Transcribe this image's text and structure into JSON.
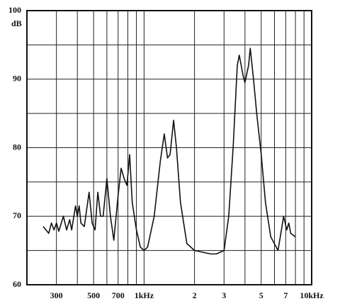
{
  "chart_data": {
    "type": "line",
    "x": [
      250,
      270,
      280,
      290,
      300,
      310,
      330,
      345,
      360,
      370,
      390,
      400,
      410,
      420,
      440,
      470,
      490,
      510,
      530,
      550,
      570,
      600,
      630,
      660,
      700,
      730,
      760,
      790,
      820,
      850,
      900,
      950,
      1000,
      1050,
      1150,
      1250,
      1320,
      1380,
      1430,
      1500,
      1560,
      1650,
      1800,
      2000,
      2500,
      2700,
      3000,
      3200,
      3400,
      3600,
      3700,
      3900,
      4000,
      4200,
      4300,
      4500,
      4700,
      5000,
      5300,
      5700,
      6300,
      6600,
      6800,
      7100,
      7300,
      7500,
      8000
    ],
    "series": [
      {
        "color": "#111111",
        "values": [
          68.5,
          67.5,
          69,
          68,
          69,
          67.8,
          70,
          68,
          69.5,
          68,
          71.5,
          70,
          71.5,
          69,
          68.5,
          73.5,
          69,
          68,
          73.5,
          70,
          70,
          75.5,
          70,
          66.5,
          73,
          77,
          75.5,
          74.5,
          79,
          72,
          68,
          65.5,
          65,
          65.5,
          70,
          78,
          82,
          78.5,
          79,
          84,
          80,
          72,
          66,
          65,
          64.5,
          64.5,
          65,
          70,
          80,
          92,
          93.5,
          90.5,
          89.5,
          92,
          94.5,
          90,
          85,
          79,
          72,
          67,
          65,
          68,
          70,
          68,
          69,
          67.5,
          67
        ]
      }
    ],
    "log_x": true,
    "xlim": [
      200,
      10000
    ],
    "xticks": [
      {
        "value": 300,
        "label": "300"
      },
      {
        "value": 500,
        "label": "500"
      },
      {
        "value": 700,
        "label": "700"
      },
      {
        "value": 1000,
        "label": "1kHz"
      },
      {
        "value": 2000,
        "label": "2"
      },
      {
        "value": 3000,
        "label": "3"
      },
      {
        "value": 5000,
        "label": "5"
      },
      {
        "value": 7000,
        "label": "7"
      },
      {
        "value": 10000,
        "label": "10kHz"
      }
    ],
    "x_minor_grid": [
      400,
      600,
      800,
      900,
      4000,
      6000,
      8000,
      9000
    ],
    "ylim": [
      60,
      100
    ],
    "yticks": [
      60,
      70,
      80,
      90,
      100
    ],
    "y_minor_grid": [
      65,
      75,
      85,
      95
    ],
    "y_unit": "dB",
    "grid": true
  }
}
